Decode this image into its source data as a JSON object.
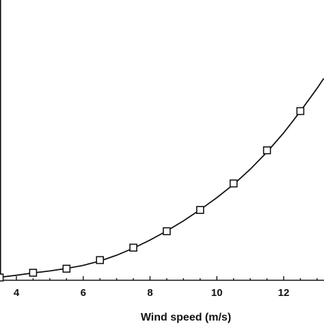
{
  "chart_data": {
    "type": "scatter",
    "xlabel": "Wind speed (m/s)",
    "ylabel": "",
    "title": "",
    "xlim": [
      3.5,
      13.2
    ],
    "ylim": [
      0,
      80
    ],
    "xticks": [
      4,
      6,
      8,
      10,
      12
    ],
    "grid": false,
    "series": [
      {
        "kind": "markers",
        "marker": "square",
        "x": [
          3.5,
          4.5,
          5.5,
          6.5,
          7.5,
          8.5,
          9.5,
          10.5,
          11.5,
          12.5
        ],
        "values": [
          0.8,
          2.7,
          4.3,
          7.7,
          12.6,
          19.1,
          27.5,
          38.0,
          51.1,
          66.6
        ]
      },
      {
        "kind": "line",
        "x": [
          3.5,
          4,
          4.5,
          5,
          5.5,
          6,
          6.5,
          7,
          7.5,
          8,
          8.5,
          9,
          9.5,
          10,
          10.5,
          11,
          11.5,
          12,
          12.5,
          13,
          13.2
        ],
        "values": [
          0.9,
          1.7,
          2.6,
          3.4,
          4.4,
          5.6,
          7.3,
          9.6,
          12.4,
          15.6,
          19.2,
          23.2,
          27.6,
          32.4,
          37.6,
          43.6,
          50.4,
          58.0,
          66.5,
          75.6,
          79.5
        ]
      }
    ]
  }
}
